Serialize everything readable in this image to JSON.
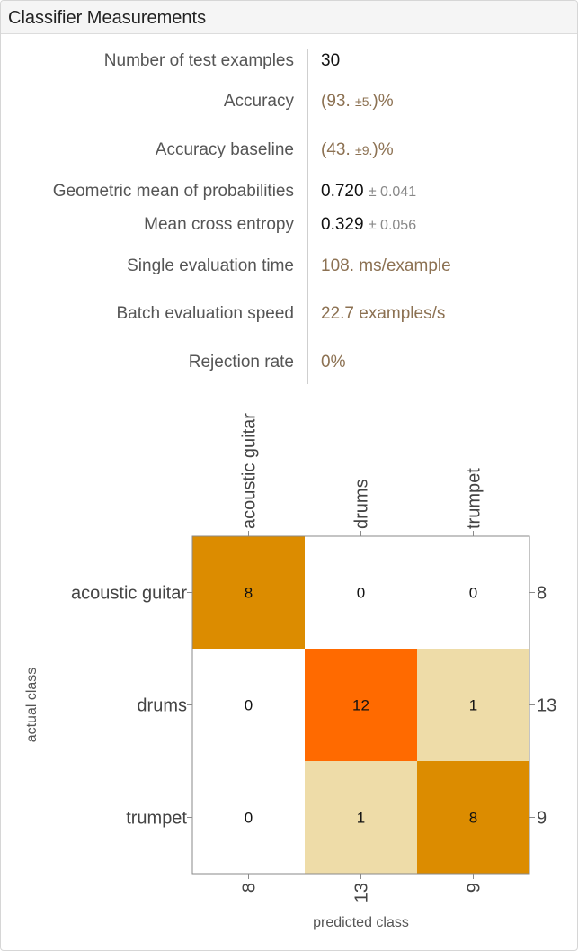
{
  "window": {
    "title": "Classifier Measurements"
  },
  "measurements": {
    "test_examples": {
      "label": "Number of test examples",
      "value": "30"
    },
    "accuracy": {
      "label": "Accuracy",
      "open": "(93.",
      "pm": "±5.",
      "close": ")%"
    },
    "accuracy_baseline": {
      "label": "Accuracy baseline",
      "open": "(43.",
      "pm": "±9.",
      "close": ")%"
    },
    "geo_mean": {
      "label": "Geometric mean of probabilities",
      "value": "0.720",
      "uncertainty": "± 0.041"
    },
    "cross_entropy": {
      "label": "Mean cross entropy",
      "value": "0.329",
      "uncertainty": "± 0.056"
    },
    "eval_time": {
      "label": "Single evaluation time",
      "value": "108. ms/example"
    },
    "batch_speed": {
      "label": "Batch evaluation speed",
      "value": "22.7 examples/s"
    },
    "rejection": {
      "label": "Rejection rate",
      "value": "0%"
    }
  },
  "chart_data": {
    "type": "heatmap",
    "title": "",
    "xlabel": "predicted class",
    "ylabel": "actual class",
    "x_categories": [
      "acoustic guitar",
      "drums",
      "trumpet"
    ],
    "y_categories": [
      "acoustic guitar",
      "drums",
      "trumpet"
    ],
    "matrix": [
      [
        8,
        0,
        0
      ],
      [
        0,
        12,
        1
      ],
      [
        0,
        1,
        8
      ]
    ],
    "row_totals": [
      8,
      13,
      9
    ],
    "column_totals": [
      8,
      13,
      9
    ],
    "colors": {
      "zero": "#ffffff",
      "low": "#eedca8",
      "mid": "#dc8c00",
      "high": "#ff6a00",
      "frame": "#8a8a8a"
    }
  }
}
